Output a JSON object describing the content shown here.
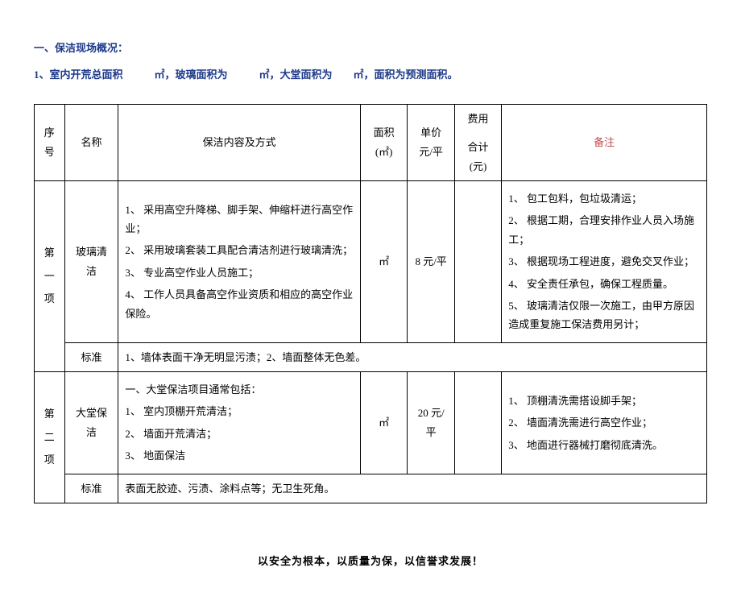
{
  "heading": "一、保洁现场概况：",
  "subline": "1、室内开荒总面积　　　㎡，玻璃面积为　　　㎡，大堂面积为　　㎡，面积为预测面积。",
  "table": {
    "headers": {
      "seq": "序号",
      "name": "名称",
      "content": "保洁内容及方式",
      "area": "面积(㎡)",
      "price": "单价元/平",
      "total_top": "费用",
      "total_bottom": "合计(元)",
      "note": "备注"
    },
    "row1": {
      "seq": [
        "第",
        "一",
        "项"
      ],
      "name": "玻璃清洁",
      "content": [
        "1、 采用高空升降梯、脚手架、伸缩杆进行高空作业；",
        "2、 采用玻璃套装工具配合清洁剂进行玻璃清洗；",
        "3、 专业高空作业人员施工；",
        "4、 工作人员具备高空作业资质和相应的高空作业保险。"
      ],
      "area": "㎡",
      "price": "8 元/平",
      "total": "",
      "note": [
        "1、 包工包料，包垃圾清运；",
        "2、 根据工期，合理安排作业人员入场施工；",
        "3、 根据现场工程进度，避免交叉作业；",
        "4、 安全责任承包，确保工程质量。",
        "5、 玻璃清洁仅限一次施工，由甲方原因造成重复施工保洁费用另计；"
      ],
      "std_label": "标准",
      "std_text": "1、墙体表面干净无明显污渍；2、墙面整体无色差。"
    },
    "row2": {
      "seq": [
        "第",
        "二",
        "项"
      ],
      "name": "大堂保洁",
      "content": [
        "一、大堂保洁项目通常包括：",
        "1、 室内顶棚开荒清洁；",
        "2、 墙面开荒清洁；",
        "3、 地面保洁"
      ],
      "area": "㎡",
      "price": "20 元/平",
      "total": "",
      "note": [
        "1、 顶棚清洗需搭设脚手架；",
        "2、 墙面清洗需进行高空作业；",
        "3、 地面进行器械打磨彻底清洗。"
      ],
      "std_label": "标准",
      "std_text": "表面无胶迹、污渍、涂料点等；无卫生死角。"
    }
  },
  "slogan": "以安全为根本，以质量为保，以信誉求发展！",
  "colors": {
    "heading_color": "#1e3a8a",
    "note_color": "#c0504d",
    "border_color": "#000000",
    "background": "#ffffff"
  }
}
